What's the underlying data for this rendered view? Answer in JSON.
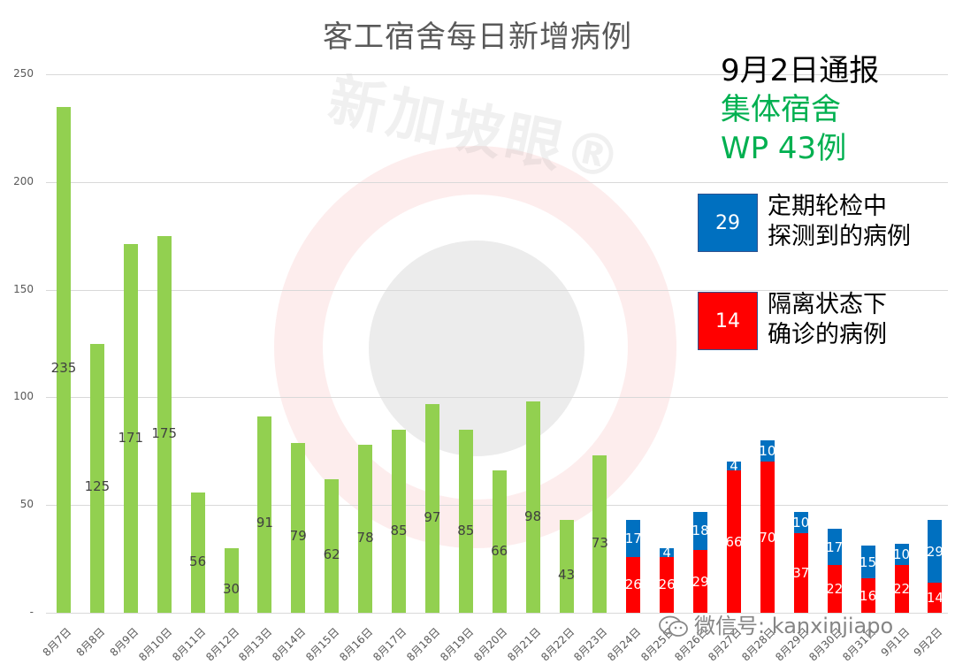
{
  "title": "客工宿舍每日新增病例",
  "annotation": {
    "headline": "9月2日通报",
    "line2": "集体宿舍",
    "line3": "WP 43例"
  },
  "legend": {
    "routine": {
      "value": "29",
      "label_line1": "定期轮检中",
      "label_line2": "探测到的病例",
      "color": "#0070c0"
    },
    "quarantine": {
      "value": "14",
      "label_line1": "隔离状态下",
      "label_line2": "确诊的病例",
      "color": "#ff0000"
    }
  },
  "watermark": {
    "brand": "新加坡眼®",
    "wechat": "微信号: kanxinjiapo",
    "wechat_icon": "wechat-icon"
  },
  "colors": {
    "green": "#92d050",
    "blue": "#0070c0",
    "red": "#ff0000",
    "grid": "#d9d9d9"
  },
  "y_ticks": [
    "250",
    "200",
    "150",
    "100",
    "50",
    "-"
  ],
  "chart_data": {
    "type": "bar",
    "title": "客工宿舍每日新增病例",
    "xlabel": "",
    "ylabel": "",
    "ylim": [
      0,
      250
    ],
    "yticks": [
      0,
      50,
      100,
      150,
      200,
      250
    ],
    "grid": true,
    "stacked": true,
    "legend_position": "right (custom boxes)",
    "categories": [
      "8月7日",
      "8月8日",
      "8月9日",
      "8月10日",
      "8月11日",
      "8月12日",
      "8月13日",
      "8月14日",
      "8月15日",
      "8月16日",
      "8月17日",
      "8月18日",
      "8月19日",
      "8月20日",
      "8月21日",
      "8月22日",
      "8月23日",
      "8月24日",
      "8月25日",
      "8月26日",
      "8月27日",
      "8月28日",
      "8月29日",
      "8月30日",
      "8月31日",
      "9月1日",
      "9月2日"
    ],
    "series": [
      {
        "name": "每日新增病例",
        "color": "#92d050",
        "values": [
          235,
          125,
          171,
          175,
          56,
          30,
          91,
          79,
          62,
          78,
          85,
          97,
          85,
          66,
          98,
          43,
          73,
          null,
          null,
          null,
          null,
          null,
          null,
          null,
          null,
          null,
          null
        ]
      },
      {
        "name": "隔离状态下确诊的病例",
        "color": "#ff0000",
        "values": [
          null,
          null,
          null,
          null,
          null,
          null,
          null,
          null,
          null,
          null,
          null,
          null,
          null,
          null,
          null,
          null,
          null,
          26,
          26,
          29,
          66,
          70,
          37,
          22,
          16,
          22,
          14
        ]
      },
      {
        "name": "定期轮检中探测到的病例",
        "color": "#0070c0",
        "values": [
          null,
          null,
          null,
          null,
          null,
          null,
          null,
          null,
          null,
          null,
          null,
          null,
          null,
          null,
          null,
          null,
          null,
          17,
          4,
          18,
          4,
          10,
          10,
          17,
          15,
          10,
          29
        ]
      }
    ],
    "annotations": [
      "9月2日通报",
      "集体宿舍 WP 43例",
      "29 定期轮检中探测到的病例",
      "14 隔离状态下确诊的病例"
    ]
  }
}
